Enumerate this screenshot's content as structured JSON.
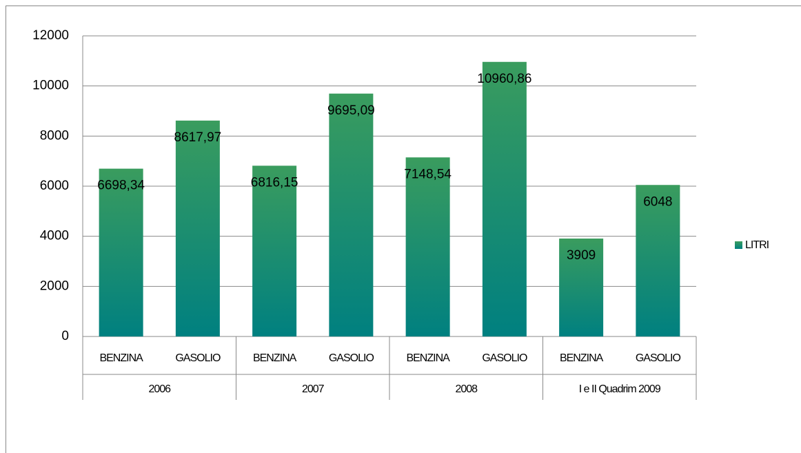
{
  "chart_data": {
    "type": "bar",
    "categories": [
      "BENZINA",
      "GASOLIO",
      "BENZINA",
      "GASOLIO",
      "BENZINA",
      "GASOLIO",
      "BENZINA",
      "GASOLIO"
    ],
    "category_groups": [
      "2006",
      "2007",
      "2008",
      "I e II Quadrim 2009"
    ],
    "series": [
      {
        "name": "LITRI",
        "color": [
          "#3a9c5e",
          "#008080"
        ],
        "values": [
          6698.34,
          8617.97,
          6816.15,
          9695.09,
          7148.54,
          10960.86,
          3909,
          6048
        ],
        "value_labels": [
          "6698,34",
          "8617,97",
          "6816,15",
          "9695,09",
          "7148,54",
          "10960,86",
          "3909",
          "6048"
        ]
      }
    ],
    "ylim": [
      0,
      12000
    ],
    "yticks": [
      0,
      2000,
      4000,
      6000,
      8000,
      10000,
      12000
    ],
    "grid": true,
    "legend": "right"
  }
}
